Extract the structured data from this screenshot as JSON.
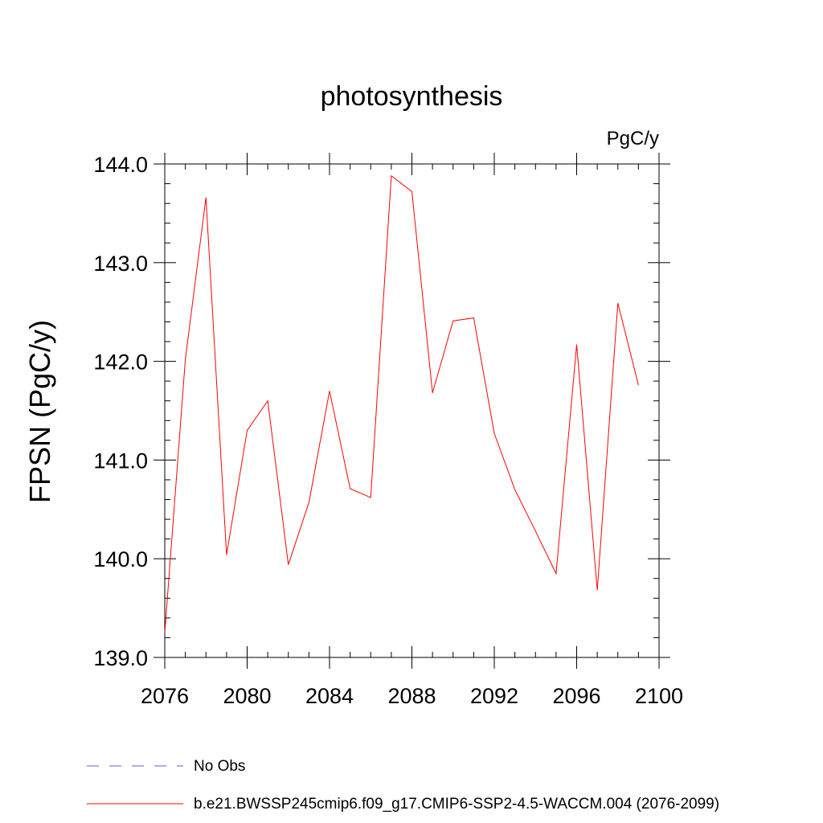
{
  "chart_data": {
    "type": "line",
    "title": "photosynthesis",
    "units_label": "PgC/y",
    "xlabel": "",
    "ylabel": "FPSN  (PgC/y)",
    "xlim": [
      2076,
      2100
    ],
    "ylim": [
      139.0,
      144.0
    ],
    "x_ticks": [
      2076,
      2080,
      2084,
      2088,
      2092,
      2096,
      2100
    ],
    "y_ticks": [
      "139.0",
      "140.0",
      "141.0",
      "142.0",
      "143.0",
      "144.0"
    ],
    "series": [
      {
        "name": "b.e21.BWSSP245cmip6.f09_g17.CMIP6-SSP2-4.5-WACCM.004 (2076-2099)",
        "color": "#ff0000",
        "x": [
          2076,
          2077,
          2078,
          2079,
          2080,
          2081,
          2082,
          2083,
          2084,
          2085,
          2086,
          2087,
          2088,
          2089,
          2090,
          2091,
          2092,
          2093,
          2094,
          2095,
          2096,
          2097,
          2098,
          2099
        ],
        "values": [
          139.25,
          142.02,
          143.66,
          140.04,
          141.3,
          141.6,
          139.94,
          140.57,
          141.7,
          140.71,
          140.62,
          143.88,
          143.72,
          141.68,
          142.41,
          142.44,
          141.27,
          140.7,
          140.28,
          139.85,
          142.17,
          139.68,
          142.59,
          141.76
        ]
      }
    ],
    "legend": [
      {
        "label": "No Obs",
        "color": "#6a5acd",
        "style": "dashed"
      },
      {
        "label": "b.e21.BWSSP245cmip6.f09_g17.CMIP6-SSP2-4.5-WACCM.004 (2076-2099)",
        "color": "#ff0000",
        "style": "solid"
      }
    ],
    "legend_position": "bottom-left",
    "grid": false
  }
}
